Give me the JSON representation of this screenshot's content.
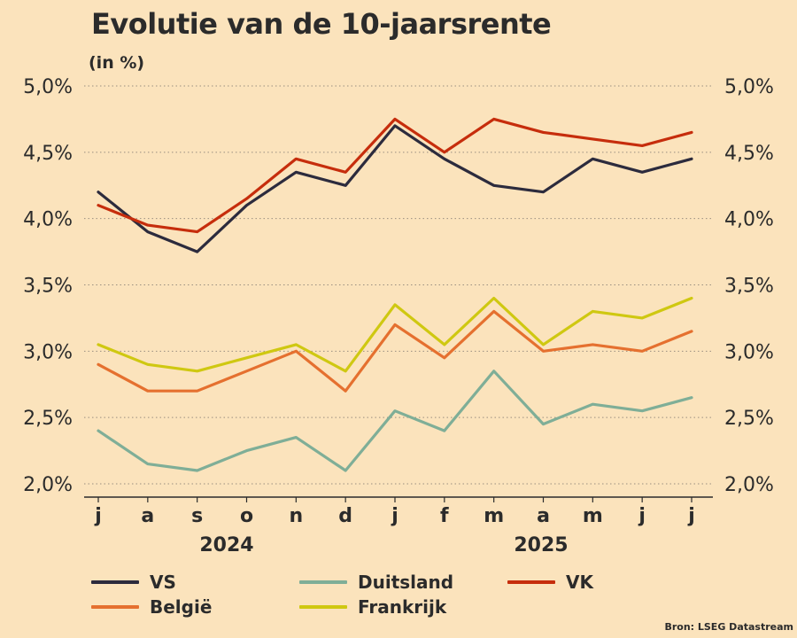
{
  "title": "Evolutie van de 10-jaarsrente",
  "subtitle": "(in %)",
  "source": "Bron: LSEG Datastream",
  "chart_data": {
    "type": "line",
    "title": "Evolutie van de 10-jaarsrente",
    "ylabel": "(in %)",
    "ylim": [
      2.0,
      5.0
    ],
    "yticks": [
      2.0,
      2.5,
      3.0,
      3.5,
      4.0,
      4.5,
      5.0
    ],
    "ytick_labels": [
      "2,0%",
      "2,5%",
      "3,0%",
      "3,5%",
      "4,0%",
      "4,5%",
      "5,0%"
    ],
    "y_axis_both_sides": true,
    "grid": "horizontal dotted",
    "months": [
      "j",
      "a",
      "s",
      "o",
      "n",
      "d",
      "j",
      "f",
      "m",
      "a",
      "m",
      "j",
      "j"
    ],
    "years": [
      "2024",
      "2025"
    ],
    "x": [
      "2024-07",
      "2024-08",
      "2024-09",
      "2024-10",
      "2024-11",
      "2024-12",
      "2025-01",
      "2025-02",
      "2025-03",
      "2025-04",
      "2025-05",
      "2025-06",
      "2025-07"
    ],
    "series": [
      {
        "name": "VS",
        "color": "#2c2b3d",
        "values": [
          4.2,
          3.9,
          3.75,
          4.1,
          4.35,
          4.25,
          4.7,
          4.45,
          4.25,
          4.2,
          4.45,
          4.35,
          4.45
        ]
      },
      {
        "name": "Duitsland",
        "color": "#7fae97",
        "values": [
          2.4,
          2.15,
          2.1,
          2.25,
          2.35,
          2.1,
          2.55,
          2.4,
          2.85,
          2.45,
          2.6,
          2.55,
          2.65
        ]
      },
      {
        "name": "VK",
        "color": "#c62d0c",
        "values": [
          4.1,
          3.95,
          3.9,
          4.15,
          4.45,
          4.35,
          4.75,
          4.5,
          4.75,
          4.65,
          4.6,
          4.55,
          4.65
        ]
      },
      {
        "name": "België",
        "color": "#e5702f",
        "values": [
          2.9,
          2.7,
          2.7,
          2.85,
          3.0,
          2.7,
          3.2,
          2.95,
          3.3,
          3.0,
          3.05,
          3.0,
          3.15
        ]
      },
      {
        "name": "Frankrijk",
        "color": "#cfc811",
        "values": [
          3.05,
          2.9,
          2.85,
          2.95,
          3.05,
          2.85,
          3.35,
          3.05,
          3.4,
          3.05,
          3.3,
          3.25,
          3.4
        ]
      }
    ],
    "legend_placement": "bottom"
  }
}
